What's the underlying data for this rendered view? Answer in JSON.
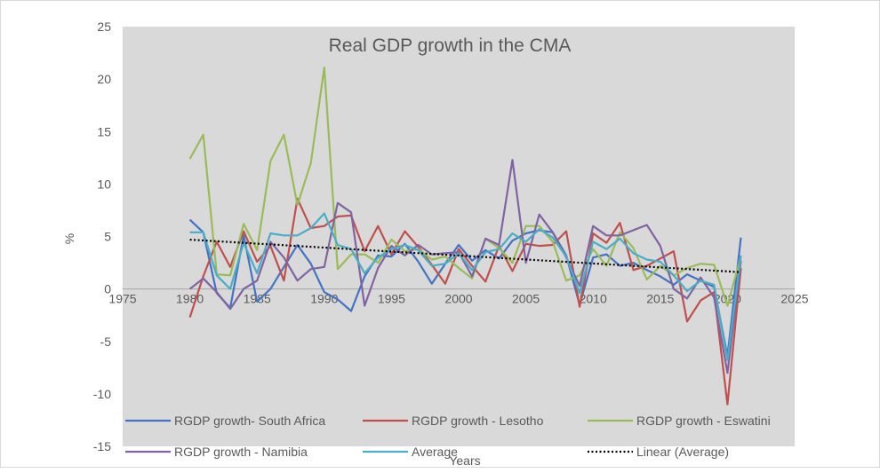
{
  "chart_data": {
    "type": "line",
    "title": "Real GDP growth in the CMA",
    "xlabel": "Years",
    "ylabel": "%",
    "xlim": [
      1975,
      2025
    ],
    "ylim": [
      -15,
      25
    ],
    "x_ticks": [
      "1975",
      "1980",
      "1985",
      "1990",
      "1995",
      "2000",
      "2005",
      "2010",
      "2015",
      "2020",
      "2025"
    ],
    "y_ticks": [
      "25",
      "20",
      "15",
      "10",
      "5",
      "0",
      "-5",
      "-10",
      "-15"
    ],
    "grid": false,
    "legend_position": "bottom",
    "x": [
      1980,
      1981,
      1982,
      1983,
      1984,
      1985,
      1986,
      1987,
      1988,
      1989,
      1990,
      1991,
      1992,
      1993,
      1994,
      1995,
      1996,
      1997,
      1998,
      1999,
      2000,
      2001,
      2002,
      2003,
      2004,
      2005,
      2006,
      2007,
      2008,
      2009,
      2010,
      2011,
      2012,
      2013,
      2014,
      2015,
      2016,
      2017,
      2018,
      2019,
      2020,
      2021
    ],
    "series": [
      {
        "name": "RGDP growth- South Africa",
        "color": "#4472c4",
        "values": [
          6.6,
          5.4,
          -0.4,
          -1.8,
          5.1,
          -1.2,
          0.0,
          2.1,
          4.2,
          2.4,
          -0.3,
          -1.0,
          -2.1,
          1.2,
          3.2,
          3.1,
          4.3,
          2.6,
          0.5,
          2.4,
          4.2,
          2.7,
          3.7,
          2.9,
          4.6,
          5.3,
          5.6,
          5.4,
          3.2,
          -1.5,
          3.0,
          3.3,
          2.2,
          2.5,
          1.8,
          1.2,
          0.4,
          1.4,
          0.8,
          0.2,
          -6.4,
          4.9
        ]
      },
      {
        "name": "RGDP growth - Lesotho",
        "color": "#c0504d",
        "values": [
          -2.7,
          1.2,
          4.5,
          2.1,
          5.5,
          2.6,
          4.1,
          0.8,
          8.6,
          5.8,
          6.0,
          6.9,
          7.0,
          3.6,
          6.0,
          3.3,
          5.5,
          4.0,
          2.3,
          0.5,
          3.8,
          2.2,
          0.7,
          4.1,
          1.7,
          4.3,
          4.1,
          4.2,
          5.5,
          -1.7,
          5.3,
          4.4,
          6.3,
          1.8,
          2.2,
          2.9,
          3.6,
          -3.1,
          -1.1,
          -0.3,
          -11.0,
          2.0
        ]
      },
      {
        "name": "RGDP growth - Eswatini",
        "color": "#9bbb59",
        "values": [
          12.4,
          14.7,
          1.4,
          1.3,
          6.2,
          3.7,
          12.2,
          14.7,
          8.0,
          12.0,
          21.1,
          1.9,
          3.3,
          3.3,
          2.5,
          4.7,
          3.6,
          3.8,
          2.8,
          3.1,
          2.0,
          1.0,
          4.8,
          3.9,
          2.5,
          6.0,
          6.0,
          4.5,
          0.8,
          1.3,
          3.8,
          2.2,
          5.4,
          3.9,
          0.9,
          2.2,
          1.3,
          2.0,
          2.4,
          2.3,
          -1.6,
          3.1
        ]
      },
      {
        "name": "RGDP growth - Namibia",
        "color": "#8064a2",
        "values": [
          0.0,
          1.0,
          -0.3,
          -1.9,
          0.0,
          0.8,
          4.5,
          3.0,
          0.8,
          1.9,
          2.1,
          8.2,
          7.3,
          -1.6,
          2.0,
          4.1,
          3.2,
          4.2,
          3.3,
          3.4,
          3.5,
          1.2,
          4.8,
          4.2,
          12.3,
          2.5,
          7.1,
          5.4,
          3.0,
          0.3,
          6.0,
          5.1,
          5.1,
          5.6,
          6.1,
          4.1,
          0.0,
          -0.9,
          1.1,
          -0.8,
          -8.0,
          2.7
        ]
      },
      {
        "name": "Average",
        "color": "#4bacc6",
        "values": [
          5.4,
          5.4,
          1.3,
          0.0,
          4.4,
          1.5,
          5.3,
          5.1,
          5.1,
          5.8,
          7.2,
          4.2,
          3.8,
          1.5,
          3.0,
          3.8,
          4.2,
          3.7,
          2.2,
          2.4,
          3.4,
          1.8,
          3.5,
          3.8,
          5.3,
          4.5,
          5.7,
          4.9,
          3.1,
          -0.4,
          4.5,
          3.8,
          4.8,
          3.4,
          2.8,
          2.6,
          1.3,
          -0.2,
          0.8,
          0.4,
          -6.8,
          3.2
        ]
      }
    ],
    "trendline": {
      "name": "Linear (Average)",
      "color": "#000000",
      "x": [
        1980,
        2021
      ],
      "values": [
        4.7,
        1.6
      ]
    }
  }
}
